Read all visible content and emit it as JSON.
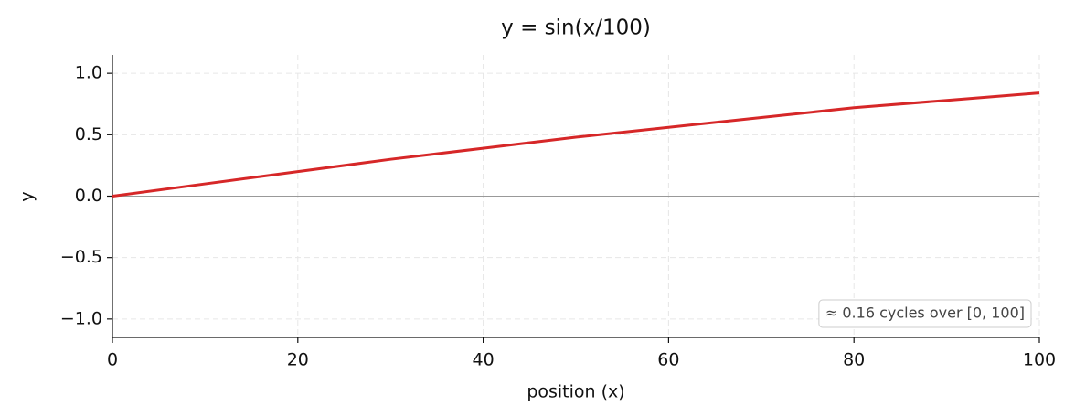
{
  "chart_data": {
    "type": "line",
    "title": "y = sin(x/100)",
    "x_label": "position (x)",
    "y_label": "y",
    "x": [
      0,
      10,
      20,
      30,
      40,
      50,
      60,
      70,
      80,
      90,
      100
    ],
    "series": [
      {
        "name": "sin(x/100)",
        "color": "#d62728",
        "values": [
          0,
          0.1,
          0.2,
          0.3,
          0.39,
          0.48,
          0.56,
          0.64,
          0.72,
          0.78,
          0.84
        ]
      }
    ],
    "xlim": [
      0,
      100
    ],
    "xticks": [
      0,
      20,
      40,
      60,
      80,
      100
    ],
    "ylim": [
      -1.15,
      1.15
    ],
    "yticks": [
      {
        "value": -1,
        "label": "−1.0"
      },
      {
        "value": -0.5,
        "label": "−0.5"
      },
      {
        "value": 0,
        "label": "0.0"
      },
      0.5,
      {
        "value": 1,
        "label": "1.0"
      }
    ],
    "reference_line": 0,
    "annotation": "≈ 0.16 cycles over [0, 100]",
    "grid": true,
    "legend": false
  }
}
